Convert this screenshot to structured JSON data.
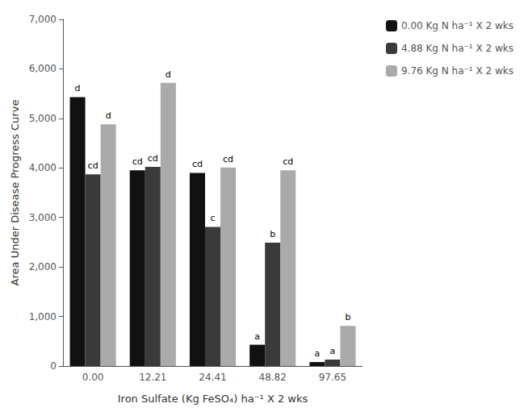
{
  "chart_data": {
    "type": "bar",
    "xlabel": "Iron Sulfate (Kg FeSO₄) ha⁻¹ X 2 wks",
    "ylabel": "Area Under Disease Progress Curve",
    "categories": [
      "0.00",
      "12.21",
      "24.41",
      "48.82",
      "97.65"
    ],
    "series": [
      {
        "name": "0.00 Kg N ha⁻¹ X 2 wks",
        "color": "#111111",
        "values": [
          5430,
          3950,
          3900,
          430,
          80
        ],
        "annotations": [
          "d",
          "cd",
          "cd",
          "a",
          "a"
        ]
      },
      {
        "name": "4.88 Kg N ha⁻¹ X 2 wks",
        "color": "#3a3a3a",
        "values": [
          3870,
          4020,
          2810,
          2490,
          130
        ],
        "annotations": [
          "cd",
          "cd",
          "c",
          "b",
          "a"
        ]
      },
      {
        "name": "9.76 Kg N ha⁻¹ X 2 wks",
        "color": "#aaaaaa",
        "values": [
          4880,
          5720,
          4010,
          3950,
          810
        ],
        "annotations": [
          "d",
          "d",
          "cd",
          "cd",
          "b"
        ]
      }
    ],
    "ylim": [
      0,
      7000
    ],
    "yticks": [
      0,
      1000,
      2000,
      3000,
      4000,
      5000,
      6000,
      7000
    ],
    "grid": false,
    "legend": "upper right"
  }
}
